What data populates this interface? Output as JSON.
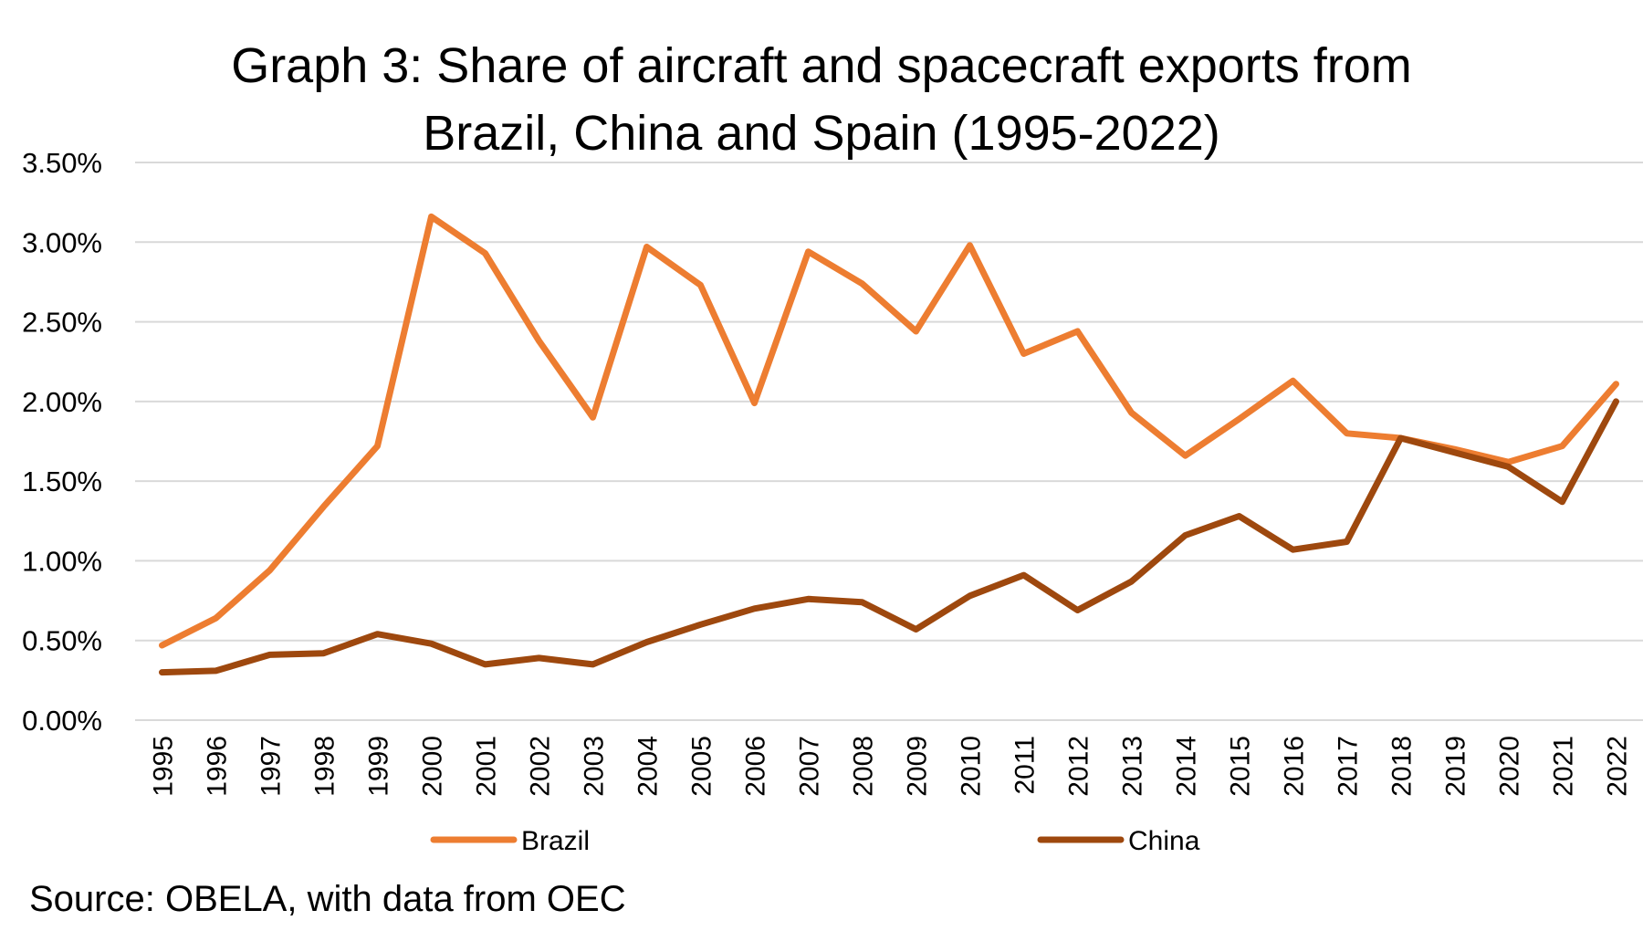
{
  "chart_data": {
    "type": "line",
    "title": [
      "Graph 3: Share of aircraft and spacecraft exports from",
      "Brazil, China and Spain (1995-2022)"
    ],
    "x": [
      "1995",
      "1996",
      "1997",
      "1998",
      "1999",
      "2000",
      "2001",
      "2002",
      "2003",
      "2004",
      "2005",
      "2006",
      "2007",
      "2008",
      "2009",
      "2010",
      "2011",
      "2012",
      "2013",
      "2014",
      "2015",
      "2016",
      "2017",
      "2018",
      "2019",
      "2020",
      "2021",
      "2022"
    ],
    "y_ticks": [
      "0.00%",
      "0.50%",
      "1.00%",
      "1.50%",
      "2.00%",
      "2.50%",
      "3.00%",
      "3.50%"
    ],
    "ylim": [
      0,
      3.5
    ],
    "y_unit": "%",
    "grid": true,
    "legend_position": "bottom",
    "series": [
      {
        "name": "Brazil",
        "color": "#ED7D31",
        "values": [
          0.47,
          0.64,
          0.94,
          1.34,
          1.72,
          3.16,
          2.93,
          2.38,
          1.9,
          2.97,
          2.73,
          1.99,
          2.94,
          2.74,
          2.44,
          2.98,
          2.3,
          2.44,
          1.93,
          1.66,
          1.89,
          2.13,
          1.8,
          1.77,
          1.7,
          1.62,
          1.72,
          2.11
        ]
      },
      {
        "name": "China",
        "color": "#9E480E",
        "values": [
          0.3,
          0.31,
          0.41,
          0.42,
          0.54,
          0.48,
          0.35,
          0.39,
          0.35,
          0.49,
          0.6,
          0.7,
          0.76,
          0.74,
          0.57,
          0.78,
          0.91,
          0.69,
          0.87,
          1.16,
          1.28,
          1.07,
          1.12,
          1.77,
          1.68,
          1.59,
          1.37,
          2.0
        ]
      }
    ]
  },
  "source": "Source: OBELA, with data from OEC"
}
